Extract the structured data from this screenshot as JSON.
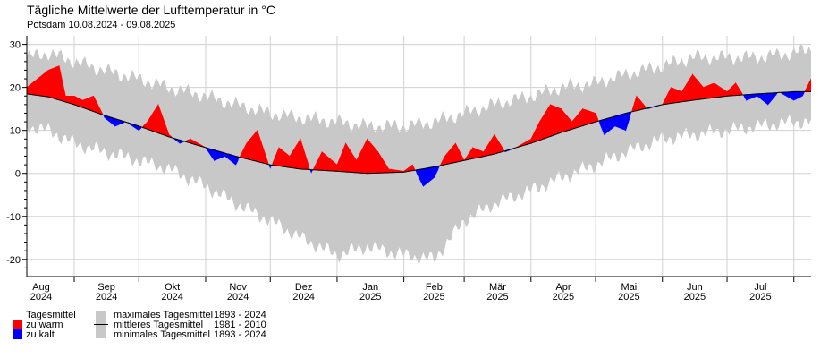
{
  "header": {
    "title": "Tägliche Mittelwerte der Lufttemperatur in °C",
    "subtitle": "Potsdam  10.08.2024 - 09.08.2025"
  },
  "colors": {
    "warm": "#ff0000",
    "cold": "#0000ff",
    "band": "#c8c8c8",
    "mean_line": "#000000",
    "grid": "#d0d0d0"
  },
  "legend": {
    "daily_mean": "Tagesmittel",
    "too_warm": "zu warm",
    "too_cold": "zu kalt",
    "max_label": "maximales Tagesmittel",
    "max_period": "1893 - 2024",
    "mean_label": "mittleres Tagesmittel",
    "mean_period": "1981 - 2010",
    "min_label": "minimales Tagesmittel",
    "min_period": "1893 - 2024"
  },
  "chart_data": {
    "type": "area",
    "ylim": [
      -24,
      32
    ],
    "yticks": [
      -20,
      -10,
      0,
      10,
      20,
      30
    ],
    "grid": true,
    "xlabels": [
      {
        "month": "Aug",
        "year": "2024"
      },
      {
        "month": "Sep",
        "year": "2024"
      },
      {
        "month": "Okt",
        "year": "2024"
      },
      {
        "month": "Nov",
        "year": "2024"
      },
      {
        "month": "Dez",
        "year": "2024"
      },
      {
        "month": "Jan",
        "year": "2025"
      },
      {
        "month": "Feb",
        "year": "2025"
      },
      {
        "month": "Mär",
        "year": "2025"
      },
      {
        "month": "Apr",
        "year": "2025"
      },
      {
        "month": "Mai",
        "year": "2025"
      },
      {
        "month": "Jun",
        "year": "2025"
      },
      {
        "month": "Jul",
        "year": "2025"
      }
    ],
    "x_range": [
      "2024-08-10",
      "2025-08-09"
    ],
    "series": [
      {
        "name": "maximales Tagesmittel",
        "dates": [
          "2024-08-10",
          "2024-08-20",
          "2024-09-01",
          "2024-09-15",
          "2024-10-01",
          "2024-10-15",
          "2024-11-01",
          "2024-11-15",
          "2024-12-01",
          "2024-12-15",
          "2025-01-01",
          "2025-01-15",
          "2025-02-01",
          "2025-02-15",
          "2025-03-01",
          "2025-03-15",
          "2025-04-01",
          "2025-04-15",
          "2025-05-01",
          "2025-05-15",
          "2025-06-01",
          "2025-06-15",
          "2025-07-01",
          "2025-07-15",
          "2025-08-01",
          "2025-08-09"
        ],
        "values": [
          27,
          28,
          26,
          24,
          22,
          20,
          18,
          16,
          14,
          13,
          12,
          11,
          11,
          12,
          14,
          16,
          18,
          20,
          21,
          23,
          25,
          27,
          27,
          27,
          28,
          29
        ]
      },
      {
        "name": "mittleres Tagesmittel",
        "dates": [
          "2024-08-10",
          "2024-08-20",
          "2024-09-01",
          "2024-09-15",
          "2024-10-01",
          "2024-10-15",
          "2024-11-01",
          "2024-11-15",
          "2024-12-01",
          "2024-12-15",
          "2025-01-01",
          "2025-01-15",
          "2025-02-01",
          "2025-02-15",
          "2025-03-01",
          "2025-03-15",
          "2025-04-01",
          "2025-04-15",
          "2025-05-01",
          "2025-05-15",
          "2025-06-01",
          "2025-06-15",
          "2025-07-01",
          "2025-07-15",
          "2025-08-01",
          "2025-08-09"
        ],
        "values": [
          18.5,
          17.8,
          16,
          13.5,
          11,
          8.5,
          6,
          4,
          2,
          1,
          0.5,
          0,
          0.3,
          1.5,
          3,
          4.5,
          7,
          9.5,
          12,
          14,
          16,
          17,
          18,
          18.5,
          19,
          19
        ]
      },
      {
        "name": "minimales Tagesmittel",
        "dates": [
          "2024-08-10",
          "2024-08-20",
          "2024-09-01",
          "2024-09-15",
          "2024-10-01",
          "2024-10-15",
          "2024-11-01",
          "2024-11-15",
          "2024-12-01",
          "2024-12-15",
          "2025-01-01",
          "2025-01-15",
          "2025-02-01",
          "2025-02-15",
          "2025-03-01",
          "2025-03-15",
          "2025-04-01",
          "2025-04-15",
          "2025-05-01",
          "2025-05-15",
          "2025-06-01",
          "2025-06-15",
          "2025-07-01",
          "2025-07-15",
          "2025-08-01",
          "2025-08-09"
        ],
        "values": [
          11,
          10,
          7,
          5,
          3,
          1,
          -3,
          -7,
          -11,
          -15,
          -19,
          -17,
          -19,
          -20,
          -11,
          -7,
          -4,
          -1,
          2,
          5,
          8,
          9,
          10,
          11,
          12,
          12
        ]
      },
      {
        "name": "Tagesmittel",
        "dates": [
          "2024-08-10",
          "2024-08-15",
          "2024-08-20",
          "2024-08-25",
          "2024-08-28",
          "2024-09-01",
          "2024-09-05",
          "2024-09-10",
          "2024-09-15",
          "2024-09-20",
          "2024-09-25",
          "2024-10-01",
          "2024-10-05",
          "2024-10-10",
          "2024-10-15",
          "2024-10-20",
          "2024-10-25",
          "2024-11-01",
          "2024-11-05",
          "2024-11-10",
          "2024-11-15",
          "2024-11-20",
          "2024-11-25",
          "2024-12-01",
          "2024-12-05",
          "2024-12-10",
          "2024-12-15",
          "2024-12-20",
          "2024-12-25",
          "2025-01-01",
          "2025-01-05",
          "2025-01-10",
          "2025-01-15",
          "2025-01-20",
          "2025-01-25",
          "2025-02-01",
          "2025-02-05",
          "2025-02-10",
          "2025-02-15",
          "2025-02-20",
          "2025-02-25",
          "2025-03-01",
          "2025-03-05",
          "2025-03-10",
          "2025-03-15",
          "2025-03-20",
          "2025-03-25",
          "2025-04-01",
          "2025-04-05",
          "2025-04-10",
          "2025-04-15",
          "2025-04-20",
          "2025-04-25",
          "2025-05-01",
          "2025-05-05",
          "2025-05-10",
          "2025-05-15",
          "2025-05-20",
          "2025-05-25",
          "2025-06-01",
          "2025-06-05",
          "2025-06-10",
          "2025-06-15",
          "2025-06-20",
          "2025-06-25",
          "2025-07-01",
          "2025-07-05",
          "2025-07-10",
          "2025-07-15",
          "2025-07-20",
          "2025-07-25",
          "2025-08-01",
          "2025-08-05",
          "2025-08-09"
        ],
        "values": [
          20,
          22,
          24,
          25,
          18,
          18,
          17,
          18,
          13,
          11,
          12,
          10,
          12,
          16,
          9,
          7,
          8,
          6,
          3,
          4,
          2,
          7,
          10,
          1,
          6,
          4,
          8,
          0,
          5,
          2,
          7,
          3,
          8,
          5,
          1,
          0.5,
          2,
          -3,
          -1,
          4,
          7,
          3,
          6,
          5,
          9,
          5,
          6,
          8,
          12,
          16,
          15,
          12,
          15,
          14,
          9,
          11,
          10,
          18,
          15,
          16,
          20,
          19,
          23,
          20,
          21,
          19,
          21,
          17,
          18,
          16,
          19,
          17,
          18,
          22
        ]
      }
    ]
  }
}
